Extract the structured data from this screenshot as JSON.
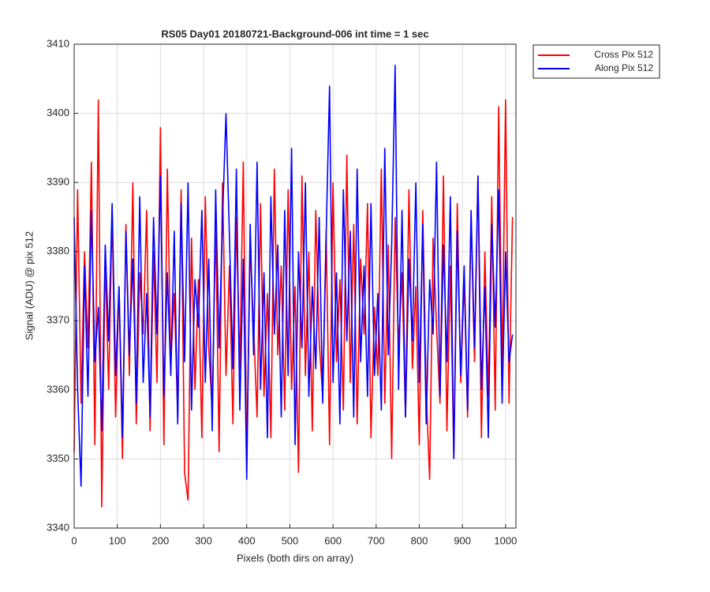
{
  "chart_data": {
    "type": "line",
    "title": "RS05 Day01 20180721-Background-006 int time = 1 sec",
    "x_label": "Pixels (both dirs on array)",
    "y_label": "Signal (ADU) @ pix 512",
    "x": [
      0,
      8,
      16,
      24,
      32,
      40,
      48,
      56,
      64,
      72,
      80,
      88,
      96,
      104,
      112,
      120,
      128,
      136,
      144,
      152,
      160,
      168,
      176,
      184,
      192,
      200,
      208,
      216,
      224,
      232,
      240,
      248,
      256,
      264,
      272,
      280,
      288,
      296,
      304,
      312,
      320,
      328,
      336,
      344,
      352,
      360,
      368,
      376,
      384,
      392,
      400,
      408,
      416,
      424,
      432,
      440,
      448,
      456,
      464,
      472,
      480,
      488,
      496,
      504,
      512,
      520,
      528,
      536,
      544,
      552,
      560,
      568,
      576,
      584,
      592,
      600,
      608,
      616,
      624,
      632,
      640,
      648,
      656,
      664,
      672,
      680,
      688,
      696,
      704,
      712,
      720,
      728,
      736,
      744,
      752,
      760,
      768,
      776,
      784,
      792,
      800,
      808,
      816,
      824,
      832,
      840,
      848,
      856,
      864,
      872,
      880,
      888,
      896,
      904,
      912,
      920,
      928,
      936,
      944,
      952,
      960,
      968,
      976,
      984,
      992,
      1000,
      1008,
      1016
    ],
    "series": [
      {
        "name": "Cross Pix 512",
        "color": "#ff0000",
        "values": [
          3351,
          3389,
          3358,
          3380,
          3366,
          3393,
          3352,
          3402,
          3343,
          3379,
          3360,
          3386,
          3356,
          3375,
          3350,
          3384,
          3362,
          3390,
          3355,
          3377,
          3368,
          3386,
          3354,
          3380,
          3361,
          3398,
          3352,
          3392,
          3364,
          3374,
          3356,
          3389,
          3348,
          3344,
          3382,
          3360,
          3376,
          3353,
          3388,
          3366,
          3357,
          3384,
          3351,
          3390,
          3362,
          3378,
          3355,
          3385,
          3363,
          3393,
          3350,
          3381,
          3369,
          3356,
          3387,
          3359,
          3374,
          3353,
          3392,
          3365,
          3378,
          3357,
          3389,
          3360,
          3375,
          3348,
          3391,
          3362,
          3380,
          3354,
          3386,
          3367,
          3359,
          3383,
          3352,
          3390,
          3364,
          3376,
          3357,
          3394,
          3361,
          3384,
          3355,
          3379,
          3368,
          3387,
          3353,
          3372,
          3362,
          3392,
          3358,
          3381,
          3350,
          3385,
          3366,
          3377,
          3356,
          3389,
          3363,
          3375,
          3352,
          3386,
          3360,
          3347,
          3382,
          3369,
          3358,
          3391,
          3354,
          3378,
          3350,
          3387,
          3361,
          3376,
          3356,
          3385,
          3364,
          3391,
          3353,
          3380,
          3359,
          3388,
          3357,
          3401,
          3362,
          3402,
          3358,
          3385
        ]
      },
      {
        "name": "Along Pix 512",
        "color": "#0000ff",
        "values": [
          3385,
          3360,
          3346,
          3378,
          3359,
          3386,
          3364,
          3372,
          3354,
          3381,
          3367,
          3387,
          3362,
          3375,
          3353,
          3383,
          3365,
          3379,
          3358,
          3388,
          3361,
          3374,
          3356,
          3385,
          3368,
          3391,
          3359,
          3377,
          3362,
          3383,
          3355,
          3387,
          3364,
          3390,
          3357,
          3376,
          3369,
          3386,
          3361,
          3379,
          3354,
          3389,
          3366,
          3385,
          3400,
          3382,
          3363,
          3392,
          3357,
          3379,
          3347,
          3384,
          3365,
          3393,
          3360,
          3377,
          3353,
          3388,
          3368,
          3381,
          3356,
          3386,
          3362,
          3395,
          3352,
          3380,
          3366,
          3390,
          3359,
          3375,
          3363,
          3385,
          3358,
          3382,
          3404,
          3361,
          3377,
          3355,
          3389,
          3367,
          3383,
          3356,
          3392,
          3364,
          3378,
          3359,
          3387,
          3362,
          3374,
          3357,
          3395,
          3365,
          3381,
          3407,
          3360,
          3386,
          3356,
          3379,
          3367,
          3390,
          3361,
          3384,
          3355,
          3376,
          3368,
          3393,
          3359,
          3381,
          3364,
          3388,
          3350,
          3383,
          3362,
          3378,
          3357,
          3386,
          3366,
          3391,
          3360,
          3375,
          3353,
          3384,
          3369,
          3389,
          3358,
          3380,
          3364,
          3368
        ]
      }
    ],
    "xlim": [
      0,
      1024
    ],
    "xticks": [
      0,
      100,
      200,
      300,
      400,
      500,
      600,
      700,
      800,
      900,
      1000
    ],
    "ylim": [
      3340,
      3410
    ],
    "yticks": [
      3340,
      3350,
      3360,
      3370,
      3380,
      3390,
      3400,
      3410
    ],
    "grid": true,
    "legend": "outside-top-right"
  }
}
